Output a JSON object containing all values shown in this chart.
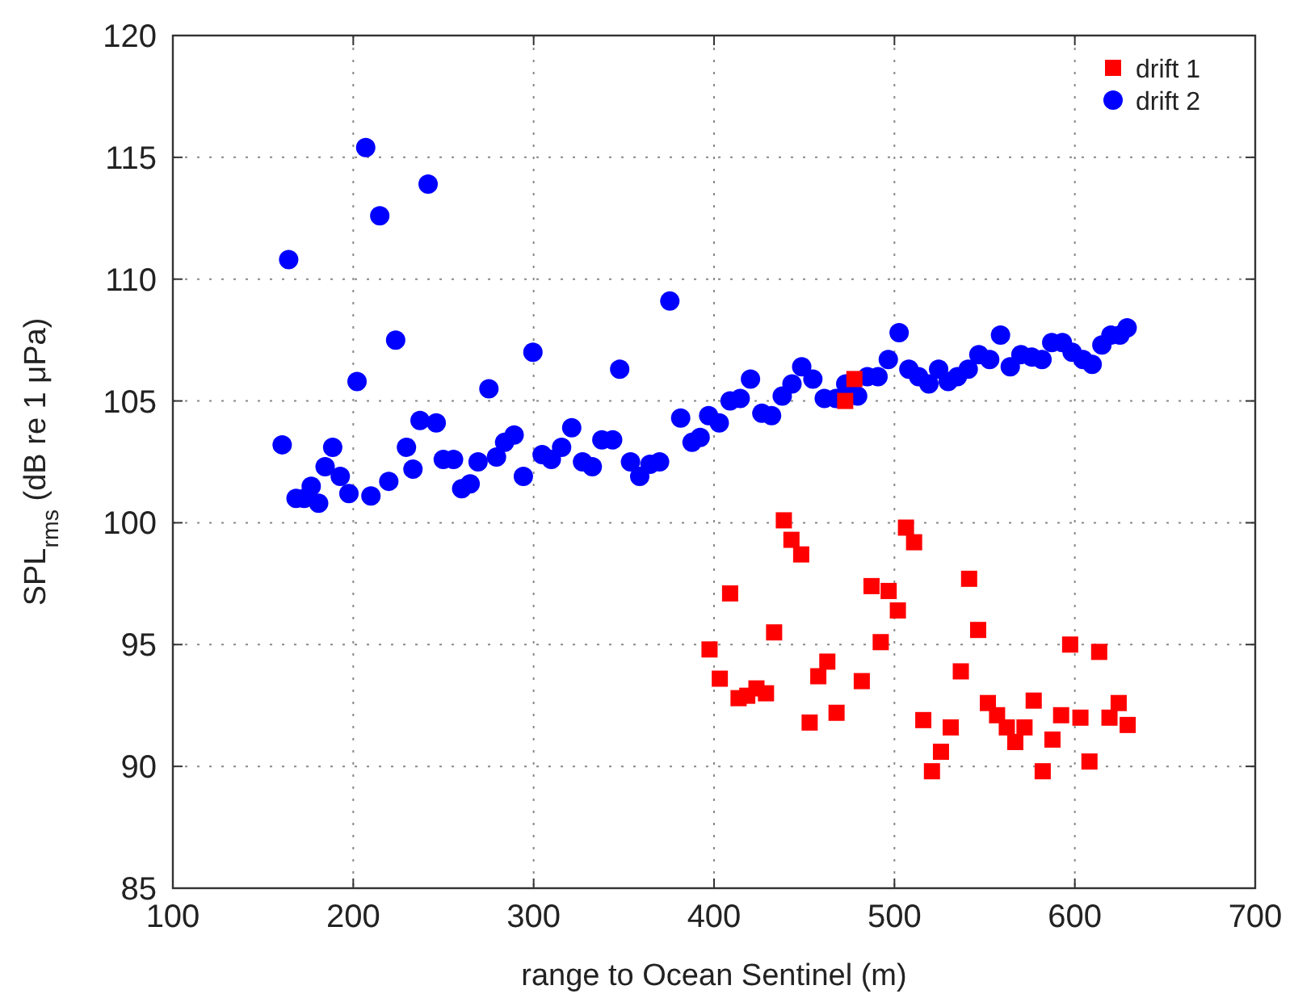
{
  "chart_data": {
    "type": "scatter",
    "xlabel": "range to Ocean Sentinel (m)",
    "ylabel": "SPL$_{rms}$ (dB re 1 μPa)",
    "xlim": [
      100,
      700
    ],
    "xticks": [
      100,
      200,
      300,
      400,
      500,
      600,
      700
    ],
    "ylim": [
      85,
      120
    ],
    "yticks": [
      85,
      90,
      95,
      100,
      105,
      110,
      115,
      120
    ],
    "grid": true,
    "legend": "top right",
    "series": [
      {
        "name": "drift 1",
        "color": "#ff0000",
        "marker": "square",
        "x": [
          397.5,
          403.2,
          408.9,
          413.6,
          418.4,
          423.5,
          428.8,
          433.3,
          438.7,
          442.9,
          448.3,
          453,
          457.8,
          462.8,
          467.9,
          472.7,
          477.8,
          481.9,
          487.3,
          492.4,
          496.8,
          501.9,
          506.4,
          510.9,
          516,
          520.8,
          525.8,
          531.2,
          536.8,
          541.4,
          546.4,
          551.8,
          556.9,
          562.3,
          567,
          572.1,
          577.2,
          582.2,
          587.6,
          592.4,
          597.4,
          603.1,
          608.1,
          613.5,
          619.2,
          624.3,
          629.3
        ],
        "values": [
          94.8,
          93.6,
          97.1,
          92.8,
          92.9,
          93.2,
          93.0,
          95.5,
          100.1,
          99.3,
          98.7,
          91.8,
          93.7,
          94.3,
          92.2,
          105.0,
          105.9,
          93.5,
          97.4,
          95.1,
          97.2,
          96.4,
          99.8,
          99.2,
          91.9,
          89.8,
          90.6,
          91.6,
          93.9,
          97.7,
          95.6,
          92.6,
          92.1,
          91.6,
          91.0,
          91.6,
          92.7,
          89.8,
          91.1,
          92.1,
          95.0,
          92.0,
          90.2,
          94.7,
          92.0,
          92.6,
          91.7
        ]
      },
      {
        "name": "drift 2",
        "color": "#0000ff",
        "marker": "circle",
        "x": [
          160.6,
          164.2,
          168.3,
          172.8,
          176.7,
          180.8,
          184.4,
          188.6,
          192.8,
          197.6,
          202.1,
          206.9,
          209.8,
          214.7,
          219.7,
          223.5,
          229.5,
          233.1,
          237,
          241.5,
          246,
          249.9,
          255.6,
          260.1,
          264.8,
          269.2,
          275.2,
          279.4,
          283.9,
          289.2,
          294.3,
          299.6,
          304.7,
          309.8,
          315.5,
          321.1,
          327.1,
          332.5,
          337.8,
          343.8,
          347.7,
          353.7,
          358.8,
          364.5,
          369.8,
          375.5,
          381.5,
          387.8,
          392.3,
          397,
          402.9,
          408.9,
          414.5,
          420.2,
          426.5,
          431.9,
          437.8,
          443.2,
          448.6,
          454.8,
          461.1,
          467.6,
          473,
          479.6,
          485,
          490.9,
          496.6,
          502.6,
          508,
          513.4,
          519.1,
          524.5,
          529.8,
          534.9,
          540.9,
          546.8,
          552.8,
          558.8,
          564.2,
          570.1,
          576.1,
          581.8,
          587.2,
          593.1,
          598.5,
          604.5,
          609.6,
          615,
          620,
          625,
          629
        ],
        "values": [
          103.2,
          110.8,
          101.0,
          101.0,
          101.5,
          100.8,
          102.3,
          103.1,
          101.9,
          101.2,
          105.8,
          115.4,
          101.1,
          112.6,
          101.7,
          107.5,
          103.1,
          102.2,
          104.2,
          113.9,
          104.1,
          102.6,
          102.6,
          101.4,
          101.6,
          102.5,
          105.5,
          102.7,
          103.3,
          103.6,
          101.9,
          107.0,
          102.8,
          102.6,
          103.1,
          103.9,
          102.5,
          102.3,
          103.4,
          103.4,
          106.3,
          102.5,
          101.9,
          102.4,
          102.5,
          109.1,
          104.3,
          103.3,
          103.5,
          104.4,
          104.1,
          105.0,
          105.1,
          105.9,
          104.5,
          104.4,
          105.2,
          105.7,
          106.4,
          105.9,
          105.1,
          105.1,
          105.7,
          105.2,
          106.0,
          106.0,
          106.7,
          107.8,
          106.3,
          106.0,
          105.7,
          106.3,
          105.8,
          106.0,
          106.3,
          106.9,
          106.7,
          107.7,
          106.4,
          106.9,
          106.8,
          106.7,
          107.4,
          107.4,
          107.0,
          106.7,
          106.5,
          107.3,
          107.7,
          107.7,
          108.0
        ]
      }
    ]
  }
}
